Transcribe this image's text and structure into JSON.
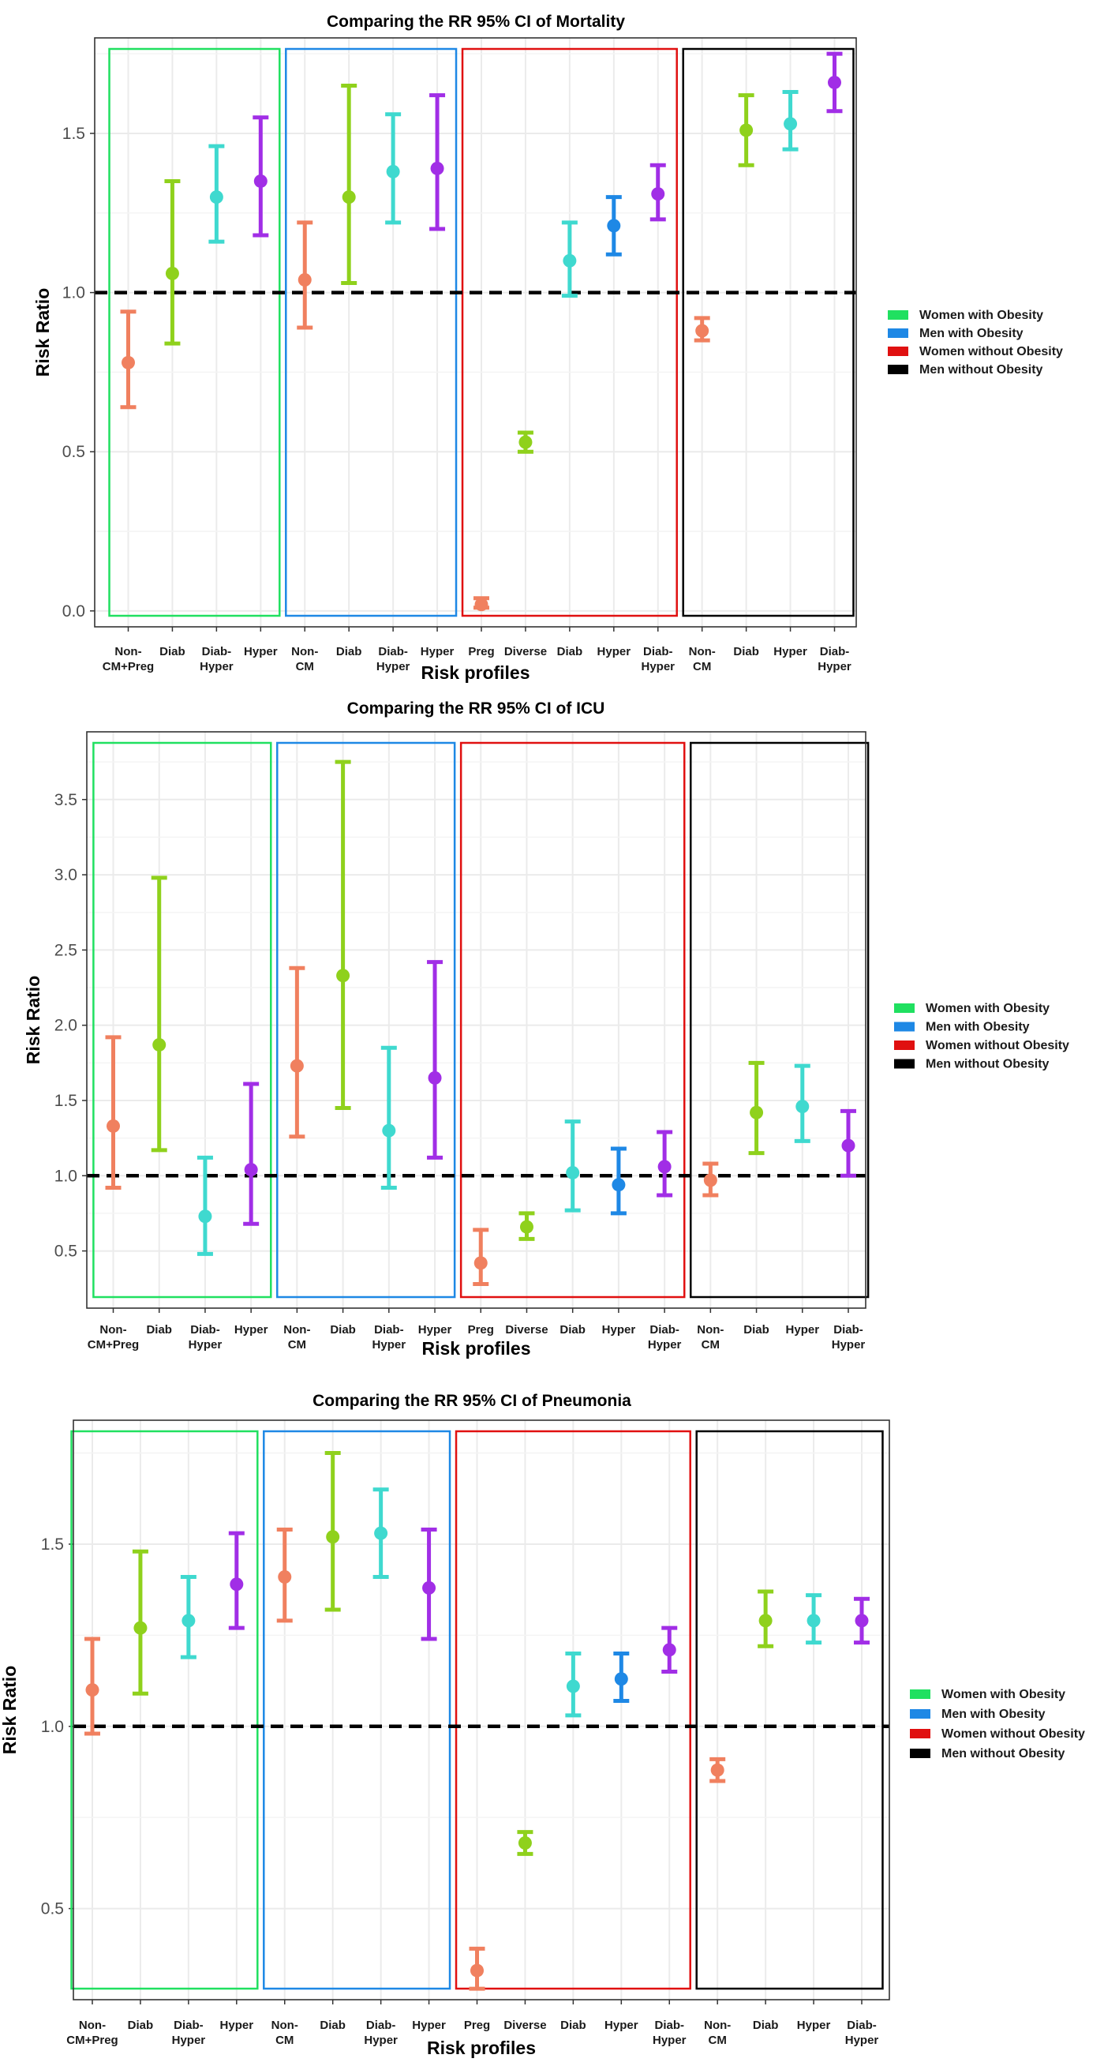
{
  "legend": {
    "items": [
      {
        "label": "Women with Obesity",
        "color": "#20e060"
      },
      {
        "label": "Men with Obesity",
        "color": "#1e88e5"
      },
      {
        "label": "Women without Obesity",
        "color": "#e01010"
      },
      {
        "label": "Men without Obesity",
        "color": "#000000"
      }
    ]
  },
  "colors": {
    "nonCM": "#f0805f",
    "diab": "#8fd11c",
    "diabHyper": "#3fd9cf",
    "hyper": "#a12ee6",
    "hyperBlue": "#1e88e5",
    "reference_line": "#000000",
    "grid": "#ebebeb"
  },
  "chart_data": [
    {
      "type": "errorbar",
      "title": "Comparing the RR 95% CI of Mortality",
      "xlabel": "Risk profiles",
      "ylabel": "Risk Ratio",
      "ylim": [
        -0.05,
        1.8
      ],
      "yticks": [
        "0.0",
        "0.5",
        "1.0",
        "1.5"
      ],
      "ytick_values": [
        0,
        0.5,
        1.0,
        1.5
      ],
      "reference_line": 1.0,
      "categories": [
        [
          "Non-",
          "CM+Preg"
        ],
        [
          "Diab"
        ],
        [
          "Diab-",
          "Hyper"
        ],
        [
          "Hyper"
        ],
        [
          "Non-",
          "CM"
        ],
        [
          "Diab"
        ],
        [
          "Diab-",
          "Hyper"
        ],
        [
          "Hyper"
        ],
        [
          "Preg"
        ],
        [
          "Diverse"
        ],
        [
          "Diab"
        ],
        [
          "Hyper"
        ],
        [
          "Diab-",
          "Hyper"
        ],
        [
          "Non-",
          "CM"
        ],
        [
          "Diab"
        ],
        [
          "Hyper"
        ],
        [
          "Diab-",
          "Hyper"
        ]
      ],
      "points": [
        {
          "est": 0.78,
          "lo": 0.64,
          "hi": 0.94,
          "color_key": "nonCM"
        },
        {
          "est": 1.06,
          "lo": 0.84,
          "hi": 1.35,
          "color_key": "diab"
        },
        {
          "est": 1.3,
          "lo": 1.16,
          "hi": 1.46,
          "color_key": "diabHyper"
        },
        {
          "est": 1.35,
          "lo": 1.18,
          "hi": 1.55,
          "color_key": "hyper"
        },
        {
          "est": 1.04,
          "lo": 0.89,
          "hi": 1.22,
          "color_key": "nonCM"
        },
        {
          "est": 1.3,
          "lo": 1.03,
          "hi": 1.65,
          "color_key": "diab"
        },
        {
          "est": 1.38,
          "lo": 1.22,
          "hi": 1.56,
          "color_key": "diabHyper"
        },
        {
          "est": 1.39,
          "lo": 1.2,
          "hi": 1.62,
          "color_key": "hyper"
        },
        {
          "est": 0.02,
          "lo": 0.01,
          "hi": 0.04,
          "color_key": "nonCM"
        },
        {
          "est": 0.53,
          "lo": 0.5,
          "hi": 0.56,
          "color_key": "diab"
        },
        {
          "est": 1.1,
          "lo": 0.99,
          "hi": 1.22,
          "color_key": "diabHyper"
        },
        {
          "est": 1.21,
          "lo": 1.12,
          "hi": 1.3,
          "color_key": "hyperBlue"
        },
        {
          "est": 1.31,
          "lo": 1.23,
          "hi": 1.4,
          "color_key": "hyper"
        },
        {
          "est": 0.88,
          "lo": 0.85,
          "hi": 0.92,
          "color_key": "nonCM"
        },
        {
          "est": 1.51,
          "lo": 1.4,
          "hi": 1.62,
          "color_key": "diab"
        },
        {
          "est": 1.53,
          "lo": 1.45,
          "hi": 1.63,
          "color_key": "diabHyper"
        },
        {
          "est": 1.66,
          "lo": 1.57,
          "hi": 1.75,
          "color_key": "hyper"
        }
      ],
      "groups": [
        {
          "from": 0,
          "to": 3,
          "legend_index": 0
        },
        {
          "from": 4,
          "to": 7,
          "legend_index": 1
        },
        {
          "from": 8,
          "to": 12,
          "legend_index": 2
        },
        {
          "from": 13,
          "to": 16,
          "legend_index": 3
        }
      ]
    },
    {
      "type": "errorbar",
      "title": "Comparing the RR 95% CI of ICU",
      "xlabel": "Risk profiles",
      "ylabel": "Risk Ratio",
      "ylim": [
        0.12,
        3.95
      ],
      "yticks": [
        "0.5",
        "1.0",
        "1.5",
        "2.0",
        "2.5",
        "3.0",
        "3.5"
      ],
      "ytick_values": [
        0.5,
        1.0,
        1.5,
        2.0,
        2.5,
        3.0,
        3.5
      ],
      "reference_line": 1.0,
      "categories": [
        [
          "Non-",
          "CM+Preg"
        ],
        [
          "Diab"
        ],
        [
          "Diab-",
          "Hyper"
        ],
        [
          "Hyper"
        ],
        [
          "Non-",
          "CM"
        ],
        [
          "Diab"
        ],
        [
          "Diab-",
          "Hyper"
        ],
        [
          "Hyper"
        ],
        [
          "Preg"
        ],
        [
          "Diverse"
        ],
        [
          "Diab"
        ],
        [
          "Hyper"
        ],
        [
          "Diab-",
          "Hyper"
        ],
        [
          "Non-",
          "CM"
        ],
        [
          "Diab"
        ],
        [
          "Hyper"
        ],
        [
          "Diab-",
          "Hyper"
        ]
      ],
      "points": [
        {
          "est": 1.33,
          "lo": 0.92,
          "hi": 1.92,
          "color_key": "nonCM"
        },
        {
          "est": 1.87,
          "lo": 1.17,
          "hi": 2.98,
          "color_key": "diab"
        },
        {
          "est": 0.73,
          "lo": 0.48,
          "hi": 1.12,
          "color_key": "diabHyper"
        },
        {
          "est": 1.04,
          "lo": 0.68,
          "hi": 1.61,
          "color_key": "hyper"
        },
        {
          "est": 1.73,
          "lo": 1.26,
          "hi": 2.38,
          "color_key": "nonCM"
        },
        {
          "est": 2.33,
          "lo": 1.45,
          "hi": 3.75,
          "color_key": "diab"
        },
        {
          "est": 1.3,
          "lo": 0.92,
          "hi": 1.85,
          "color_key": "diabHyper"
        },
        {
          "est": 1.65,
          "lo": 1.12,
          "hi": 2.42,
          "color_key": "hyper"
        },
        {
          "est": 0.42,
          "lo": 0.28,
          "hi": 0.64,
          "color_key": "nonCM"
        },
        {
          "est": 0.66,
          "lo": 0.58,
          "hi": 0.75,
          "color_key": "diab"
        },
        {
          "est": 1.02,
          "lo": 0.77,
          "hi": 1.36,
          "color_key": "diabHyper"
        },
        {
          "est": 0.94,
          "lo": 0.75,
          "hi": 1.18,
          "color_key": "hyperBlue"
        },
        {
          "est": 1.06,
          "lo": 0.87,
          "hi": 1.29,
          "color_key": "hyper"
        },
        {
          "est": 0.97,
          "lo": 0.87,
          "hi": 1.08,
          "color_key": "nonCM"
        },
        {
          "est": 1.42,
          "lo": 1.15,
          "hi": 1.75,
          "color_key": "diab"
        },
        {
          "est": 1.46,
          "lo": 1.23,
          "hi": 1.73,
          "color_key": "diabHyper"
        },
        {
          "est": 1.2,
          "lo": 1.0,
          "hi": 1.43,
          "color_key": "hyper"
        }
      ],
      "groups": [
        {
          "from": 0,
          "to": 3,
          "legend_index": 0
        },
        {
          "from": 4,
          "to": 7,
          "legend_index": 1
        },
        {
          "from": 8,
          "to": 12,
          "legend_index": 2
        },
        {
          "from": 13,
          "to": 16,
          "legend_index": 3
        }
      ]
    },
    {
      "type": "errorbar",
      "title": "Comparing the RR 95% CI of Pneumonia",
      "xlabel": "Risk profiles",
      "ylabel": "Risk Ratio",
      "ylim": [
        0.25,
        1.84
      ],
      "yticks": [
        "0.5",
        "1.0",
        "1.5"
      ],
      "ytick_values": [
        0.5,
        1.0,
        1.5
      ],
      "reference_line": 1.0,
      "categories": [
        [
          "Non-",
          "CM+Preg"
        ],
        [
          "Diab"
        ],
        [
          "Diab-",
          "Hyper"
        ],
        [
          "Hyper"
        ],
        [
          "Non-",
          "CM"
        ],
        [
          "Diab"
        ],
        [
          "Diab-",
          "Hyper"
        ],
        [
          "Hyper"
        ],
        [
          "Preg"
        ],
        [
          "Diverse"
        ],
        [
          "Diab"
        ],
        [
          "Hyper"
        ],
        [
          "Diab-",
          "Hyper"
        ],
        [
          "Non-",
          "CM"
        ],
        [
          "Diab"
        ],
        [
          "Hyper"
        ],
        [
          "Diab-",
          "Hyper"
        ]
      ],
      "points": [
        {
          "est": 1.1,
          "lo": 0.98,
          "hi": 1.24,
          "color_key": "nonCM"
        },
        {
          "est": 1.27,
          "lo": 1.09,
          "hi": 1.48,
          "color_key": "diab"
        },
        {
          "est": 1.29,
          "lo": 1.19,
          "hi": 1.41,
          "color_key": "diabHyper"
        },
        {
          "est": 1.39,
          "lo": 1.27,
          "hi": 1.53,
          "color_key": "hyper"
        },
        {
          "est": 1.41,
          "lo": 1.29,
          "hi": 1.54,
          "color_key": "nonCM"
        },
        {
          "est": 1.52,
          "lo": 1.32,
          "hi": 1.75,
          "color_key": "diab"
        },
        {
          "est": 1.53,
          "lo": 1.41,
          "hi": 1.65,
          "color_key": "diabHyper"
        },
        {
          "est": 1.38,
          "lo": 1.24,
          "hi": 1.54,
          "color_key": "hyper"
        },
        {
          "est": 0.33,
          "lo": 0.28,
          "hi": 0.39,
          "color_key": "nonCM"
        },
        {
          "est": 0.68,
          "lo": 0.65,
          "hi": 0.71,
          "color_key": "diab"
        },
        {
          "est": 1.11,
          "lo": 1.03,
          "hi": 1.2,
          "color_key": "diabHyper"
        },
        {
          "est": 1.13,
          "lo": 1.07,
          "hi": 1.2,
          "color_key": "hyperBlue"
        },
        {
          "est": 1.21,
          "lo": 1.15,
          "hi": 1.27,
          "color_key": "hyper"
        },
        {
          "est": 0.88,
          "lo": 0.85,
          "hi": 0.91,
          "color_key": "nonCM"
        },
        {
          "est": 1.29,
          "lo": 1.22,
          "hi": 1.37,
          "color_key": "diab"
        },
        {
          "est": 1.29,
          "lo": 1.23,
          "hi": 1.36,
          "color_key": "diabHyper"
        },
        {
          "est": 1.29,
          "lo": 1.23,
          "hi": 1.35,
          "color_key": "hyper"
        }
      ],
      "groups": [
        {
          "from": 0,
          "to": 3,
          "legend_index": 0
        },
        {
          "from": 4,
          "to": 7,
          "legend_index": 1
        },
        {
          "from": 8,
          "to": 12,
          "legend_index": 2
        },
        {
          "from": 13,
          "to": 16,
          "legend_index": 3
        }
      ]
    }
  ]
}
